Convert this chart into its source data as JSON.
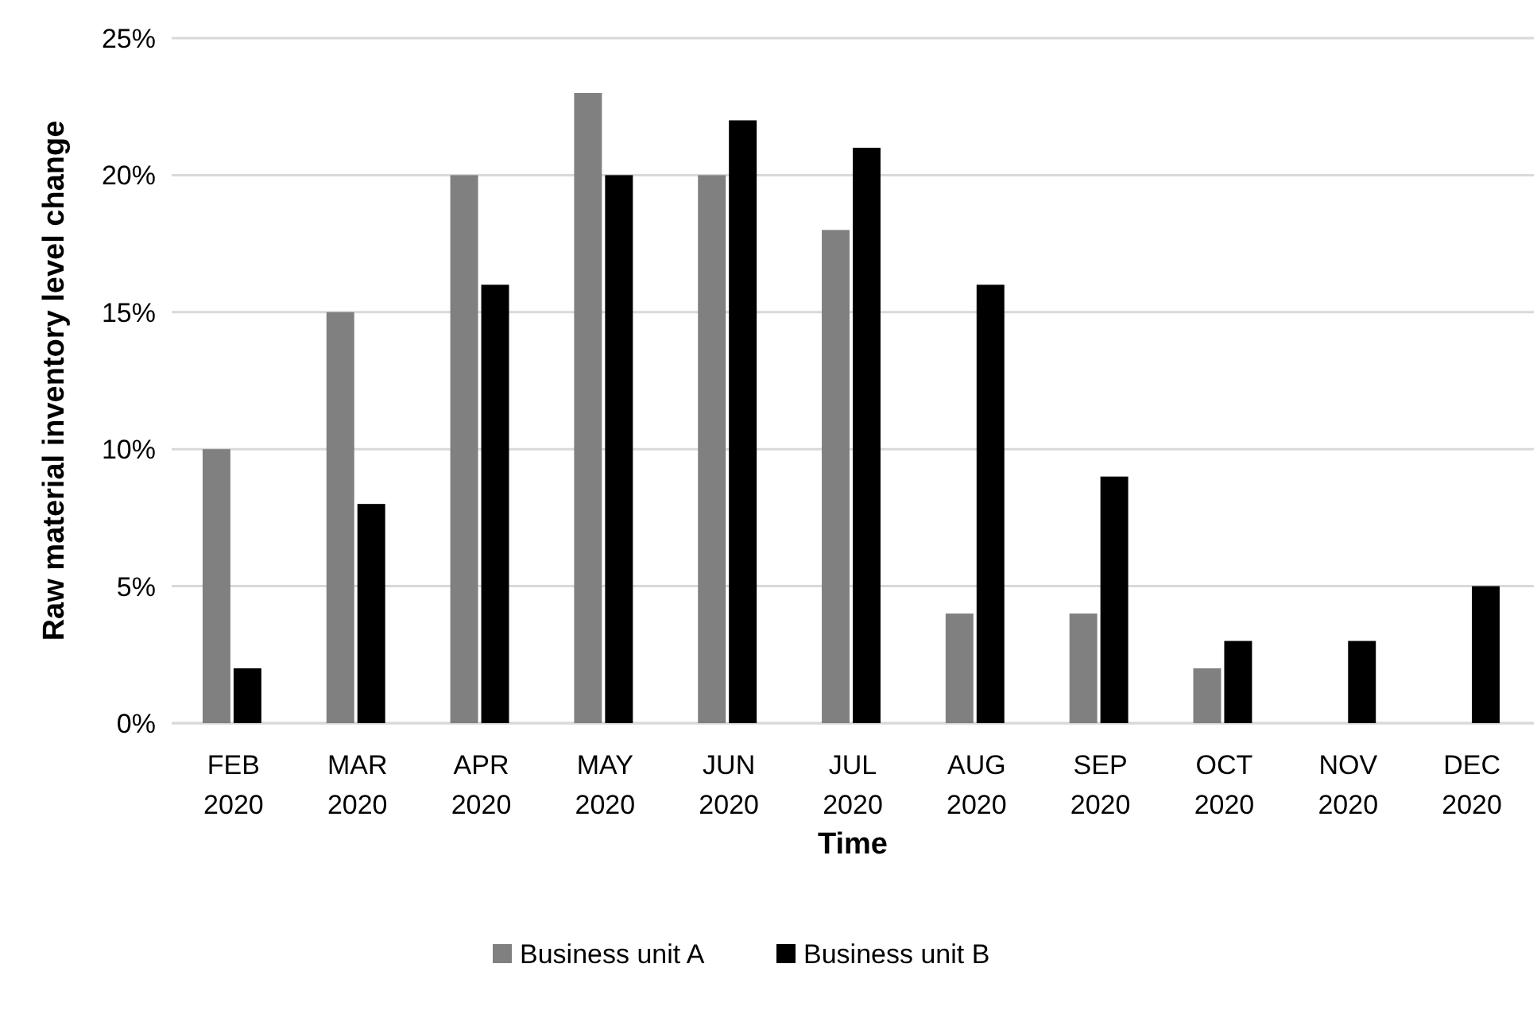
{
  "chart_data": {
    "type": "bar",
    "xlabel": "Time",
    "ylabel": "Raw material inventory level change",
    "categories": [
      "FEB 2020",
      "MAR 2020",
      "APR 2020",
      "MAY 2020",
      "JUN 2020",
      "JUL 2020",
      "AUG 2020",
      "SEP 2020",
      "OCT 2020",
      "NOV 2020",
      "DEC 2020"
    ],
    "series": [
      {
        "name": "Business unit A",
        "color": "#808080",
        "values": [
          10,
          15,
          20,
          23,
          20,
          18,
          4,
          4,
          2,
          0,
          0
        ]
      },
      {
        "name": "Business unit B",
        "color": "#000000",
        "values": [
          2,
          8,
          16,
          20,
          22,
          21,
          16,
          9,
          3,
          3,
          5
        ]
      }
    ],
    "ylim": [
      0,
      25
    ],
    "yticks": [
      {
        "value": 0,
        "label": "0%"
      },
      {
        "value": 5,
        "label": "5%"
      },
      {
        "value": 10,
        "label": "10%"
      },
      {
        "value": 15,
        "label": "15%"
      },
      {
        "value": 20,
        "label": "20%"
      },
      {
        "value": 25,
        "label": "25%"
      }
    ],
    "grid": "y",
    "legend": "bottom"
  }
}
